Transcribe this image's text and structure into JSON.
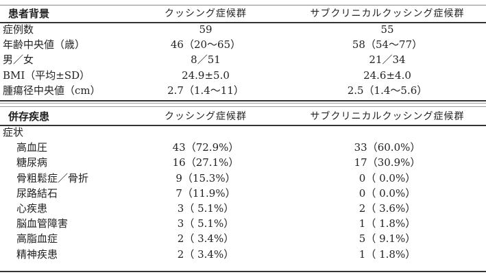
{
  "background_table": {
    "headers": [
      "患者背景",
      "クッシング症候群",
      "サブクリニカルクッシング症候群"
    ],
    "rows": [
      {
        "label": "症例数",
        "cushing": "59",
        "subclinical": "55"
      },
      {
        "label": "年齢中央値（歳）",
        "cushing": "46（20～65）",
        "subclinical": "58（54～77）"
      },
      {
        "label": "男／女",
        "cushing": "8／51",
        "subclinical": "21／34"
      },
      {
        "label": "BMI（平均±SD）",
        "cushing": "24.9±5.0",
        "subclinical": "24.6±4.0"
      },
      {
        "label": "腫瘍径中央値（cm）",
        "cushing": "2.7（1.4～11）",
        "subclinical": "2.5（1.4～5.6）"
      }
    ]
  },
  "comorbidity_table": {
    "headers": [
      "併存疾患",
      "クッシング症候群",
      "サブクリニカルクッシング症候群"
    ],
    "section_label": "症状",
    "rows": [
      {
        "label": "高血圧",
        "cushing": "43（72.9%）",
        "subclinical": "33（60.0%）"
      },
      {
        "label": "糖尿病",
        "cushing": "16（27.1%）",
        "subclinical": "17（30.9%）"
      },
      {
        "label": "骨粗鬆症／骨折",
        "cushing": "9（15.3%）",
        "subclinical": "0（ 0.0%）"
      },
      {
        "label": "尿路結石",
        "cushing": "7（11.9%）",
        "subclinical": "0（ 0.0%）"
      },
      {
        "label": "心疾患",
        "cushing": "3（ 5.1%）",
        "subclinical": "2（ 3.6%）"
      },
      {
        "label": "脳血管障害",
        "cushing": "3（ 5.1%）",
        "subclinical": "1（ 1.8%）"
      },
      {
        "label": "高脂血症",
        "cushing": "2（ 3.4%）",
        "subclinical": "5（ 9.1%）"
      },
      {
        "label": "精神疾患",
        "cushing": "2（ 3.4%）",
        "subclinical": "1（ 1.8%）"
      }
    ]
  }
}
